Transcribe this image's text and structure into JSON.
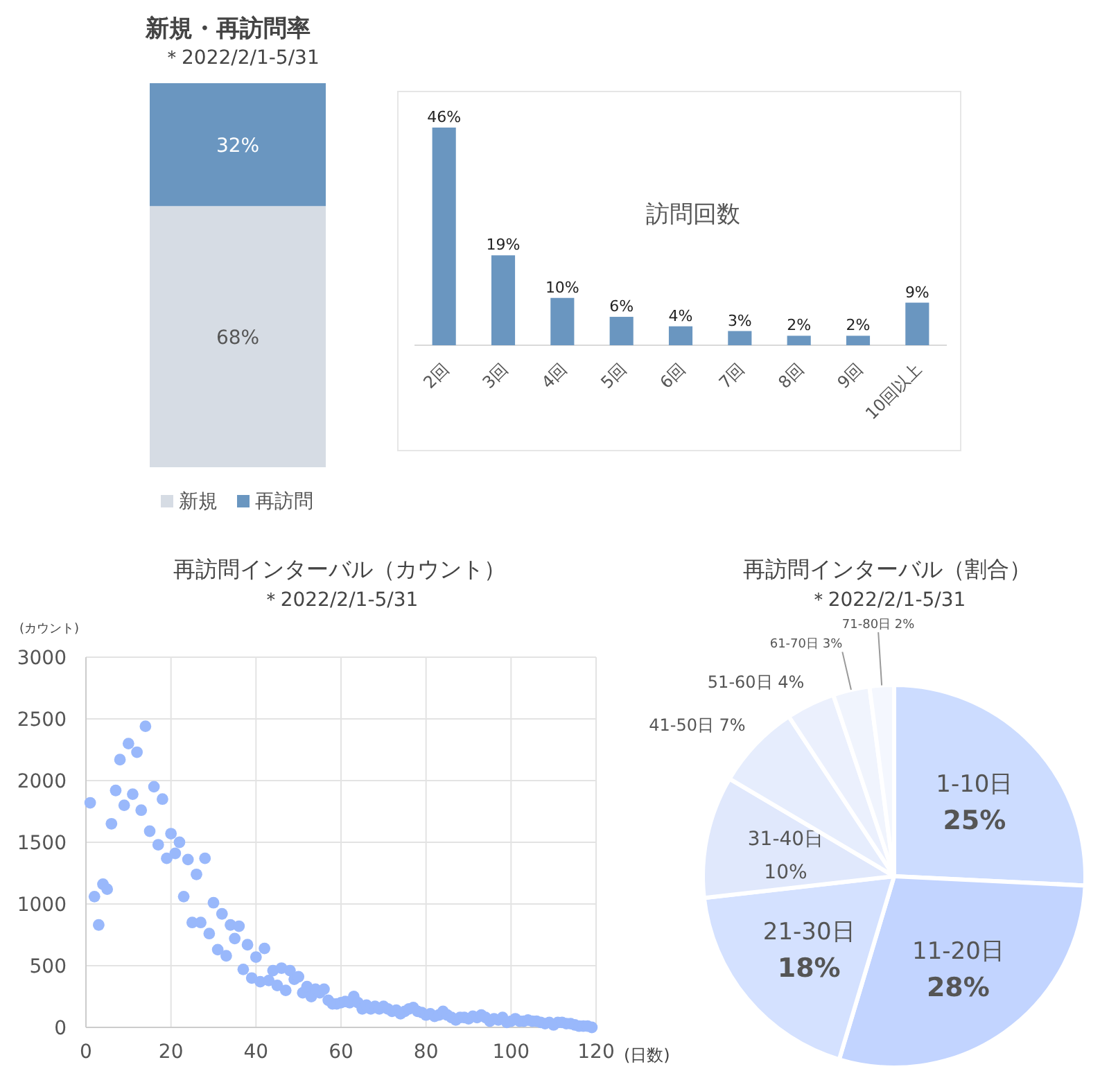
{
  "chart_data": [
    {
      "type": "bar",
      "stacked": true,
      "title": "新規・再訪問率",
      "subtitle": "＊2022/2/1-5/31",
      "categories": [
        null
      ],
      "legend": "bottom",
      "series": [
        {
          "name": "新規",
          "color": "#d6dce4",
          "values": [
            68
          ],
          "value_labels": [
            "68%"
          ]
        },
        {
          "name": "再訪問",
          "color": "#6a96c0",
          "values": [
            32
          ],
          "value_labels": [
            "32%"
          ]
        }
      ]
    },
    {
      "type": "bar",
      "title": "訪問回数",
      "categories": [
        "2回",
        "3回",
        "4回",
        "5回",
        "6回",
        "7回",
        "8回",
        "9回",
        "10回以上"
      ],
      "values": [
        46,
        19,
        10,
        6,
        4,
        3,
        2,
        2,
        9
      ],
      "value_labels": [
        "46%",
        "19%",
        "10%",
        "6%",
        "4%",
        "3%",
        "2%",
        "2%",
        "9%"
      ],
      "color": "#6a96c0"
    },
    {
      "type": "scatter",
      "title": "再訪問インターバル（カウント）",
      "subtitle": "＊2022/2/1-5/31",
      "xlabel": "(日数)",
      "ylabel": "(カウント)",
      "color": "#99b8fb",
      "marker": "circle",
      "grid": true,
      "xlim": [
        0,
        120
      ],
      "ylim": [
        0,
        3000
      ],
      "xticks": [
        0,
        20,
        40,
        60,
        80,
        100,
        120
      ],
      "yticks": [
        0,
        500,
        1000,
        1500,
        2000,
        2500,
        3000
      ],
      "x": [
        1,
        2,
        3,
        4,
        5,
        6,
        7,
        8,
        9,
        10,
        11,
        12,
        13,
        14,
        15,
        16,
        17,
        18,
        19,
        20,
        21,
        22,
        23,
        24,
        25,
        26,
        27,
        28,
        29,
        30,
        31,
        32,
        33,
        34,
        35,
        36,
        37,
        38,
        39,
        40,
        41,
        42,
        43,
        44,
        45,
        46,
        47,
        48,
        49,
        50,
        51,
        52,
        53,
        54,
        55,
        56,
        57,
        58,
        59,
        60,
        61,
        62,
        63,
        64,
        65,
        66,
        67,
        68,
        69,
        70,
        71,
        72,
        73,
        74,
        75,
        76,
        77,
        78,
        79,
        80,
        81,
        82,
        83,
        84,
        85,
        86,
        87,
        88,
        89,
        90,
        91,
        92,
        93,
        94,
        95,
        96,
        97,
        98,
        99,
        100,
        101,
        102,
        103,
        104,
        105,
        106,
        107,
        108,
        109,
        110,
        111,
        112,
        113,
        114,
        115,
        116,
        117,
        118,
        119
      ],
      "values": [
        1820,
        1060,
        830,
        1160,
        1120,
        1650,
        1920,
        2170,
        1800,
        2300,
        1890,
        2230,
        1760,
        2440,
        1590,
        1950,
        1480,
        1850,
        1370,
        1570,
        1410,
        1500,
        1060,
        1360,
        850,
        1240,
        850,
        1370,
        760,
        1010,
        630,
        920,
        580,
        830,
        720,
        820,
        470,
        670,
        400,
        570,
        370,
        640,
        380,
        460,
        340,
        480,
        300,
        460,
        390,
        410,
        280,
        330,
        250,
        310,
        280,
        310,
        220,
        190,
        190,
        200,
        210,
        200,
        250,
        200,
        150,
        180,
        150,
        170,
        150,
        170,
        150,
        130,
        140,
        110,
        130,
        150,
        160,
        130,
        120,
        100,
        110,
        90,
        100,
        130,
        100,
        80,
        60,
        80,
        80,
        70,
        90,
        80,
        100,
        80,
        50,
        70,
        60,
        80,
        40,
        50,
        70,
        50,
        50,
        60,
        50,
        50,
        40,
        30,
        40,
        20,
        40,
        40,
        30,
        30,
        20,
        10,
        10,
        10,
        0
      ]
    },
    {
      "type": "pie",
      "title": "再訪問インターバル（割合）",
      "subtitle": "＊2022/2/1-5/31",
      "categories": [
        "1-10日",
        "11-20日",
        "21-30日",
        "31-40日",
        "41-50日",
        "51-60日",
        "61-70日",
        "71-80日"
      ],
      "values": [
        25,
        28,
        18,
        10,
        7,
        4,
        3,
        2
      ],
      "value_labels": [
        "25%",
        "28%",
        "18%",
        "10%",
        "7%",
        "4%",
        "3%",
        "2%"
      ],
      "colors": [
        "#ccdcff",
        "#c2d4ff",
        "#d4e1ff",
        "#e0e8fc",
        "#e6edfd",
        "#ebf0fd",
        "#f0f4fd",
        "#f4f7fe"
      ]
    }
  ]
}
